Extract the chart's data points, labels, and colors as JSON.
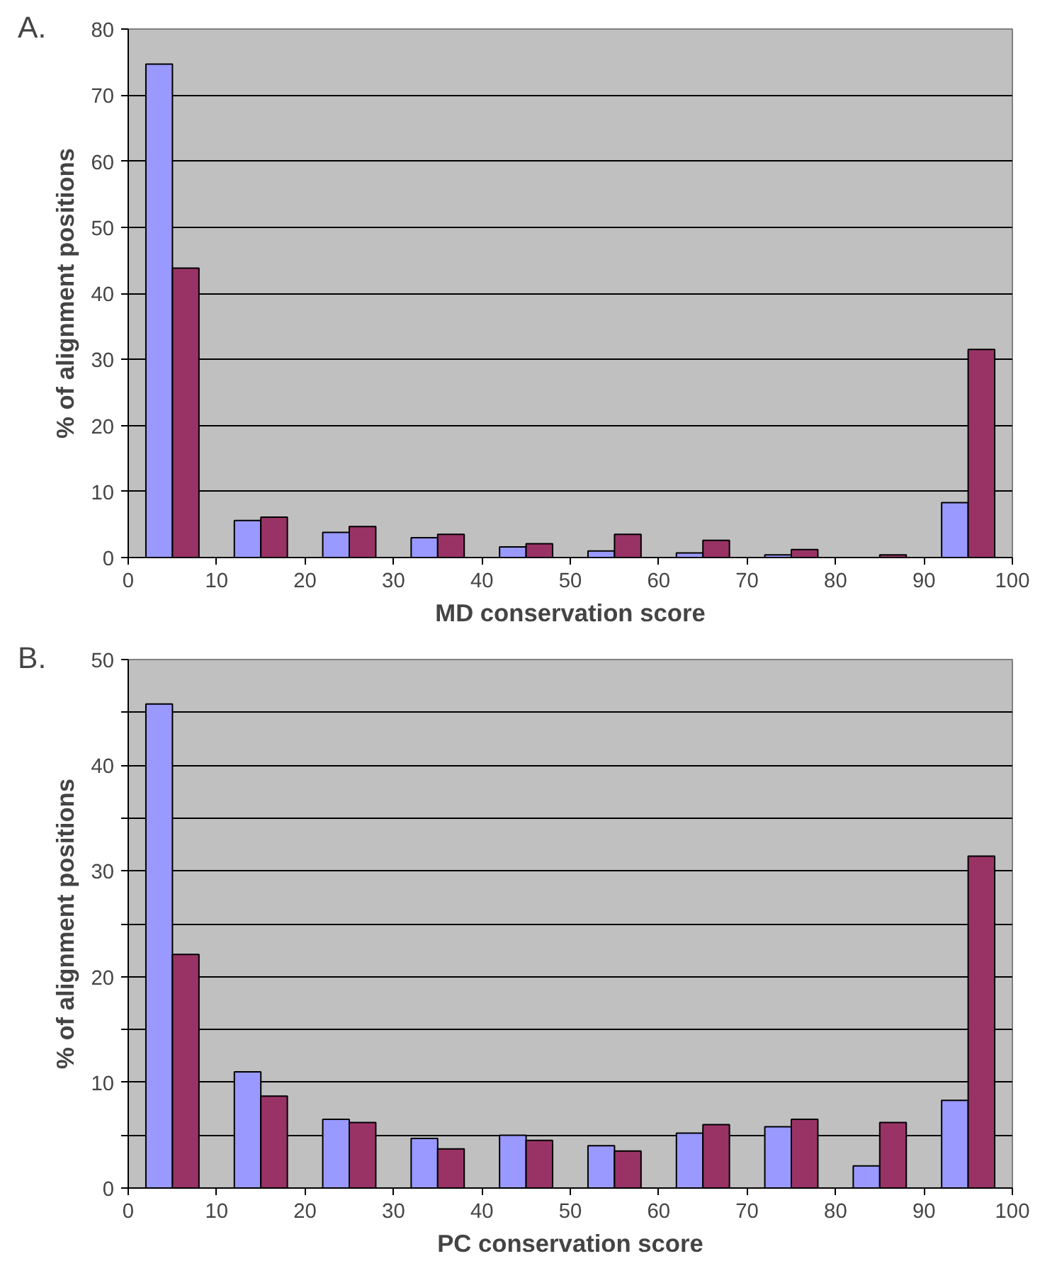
{
  "chart_data": [
    {
      "type": "bar",
      "xlabel": "MD conservation score",
      "ylabel": "% of alignment positions",
      "annotations": [
        "A."
      ],
      "x": [
        5,
        15,
        25,
        35,
        45,
        55,
        65,
        75,
        85,
        95
      ],
      "series": [
        {
          "color": "#9999ff",
          "values": [
            74.7,
            5.6,
            3.8,
            3.0,
            1.6,
            1.0,
            0.7,
            0.4,
            0,
            8.3
          ]
        },
        {
          "color": "#993366",
          "values": [
            43.8,
            6.1,
            4.7,
            3.5,
            2.1,
            3.5,
            2.6,
            1.2,
            0.4,
            31.5
          ]
        }
      ],
      "xlim": [
        0,
        100
      ],
      "xticks": [
        0,
        10,
        20,
        30,
        40,
        50,
        60,
        70,
        80,
        90,
        100
      ],
      "ylim": [
        0,
        80
      ],
      "yticks": [
        0,
        10,
        20,
        30,
        40,
        50,
        60,
        70,
        80
      ],
      "grid": "y"
    },
    {
      "type": "bar",
      "xlabel": "PC conservation score",
      "ylabel": "% of alignment positions",
      "annotations": [
        "B."
      ],
      "x": [
        5,
        15,
        25,
        35,
        45,
        55,
        65,
        75,
        85,
        95
      ],
      "series": [
        {
          "color": "#9999ff",
          "values": [
            45.8,
            11.0,
            6.5,
            4.7,
            5.0,
            4.0,
            5.2,
            5.8,
            2.1,
            8.3
          ]
        },
        {
          "color": "#993366",
          "values": [
            22.1,
            8.7,
            6.2,
            3.7,
            4.5,
            3.5,
            6.0,
            6.5,
            6.2,
            31.4
          ]
        }
      ],
      "xlim": [
        0,
        100
      ],
      "xticks": [
        0,
        10,
        20,
        30,
        40,
        50,
        60,
        70,
        80,
        90,
        100
      ],
      "ylim": [
        0,
        50
      ],
      "yticks": [
        0,
        {
          "value": 5,
          "label": null
        },
        10,
        {
          "value": 15,
          "label": null
        },
        20,
        {
          "value": 25,
          "label": null
        },
        30,
        {
          "value": 35,
          "label": null
        },
        40,
        {
          "value": 45,
          "label": null
        },
        50
      ],
      "grid": "y"
    }
  ]
}
